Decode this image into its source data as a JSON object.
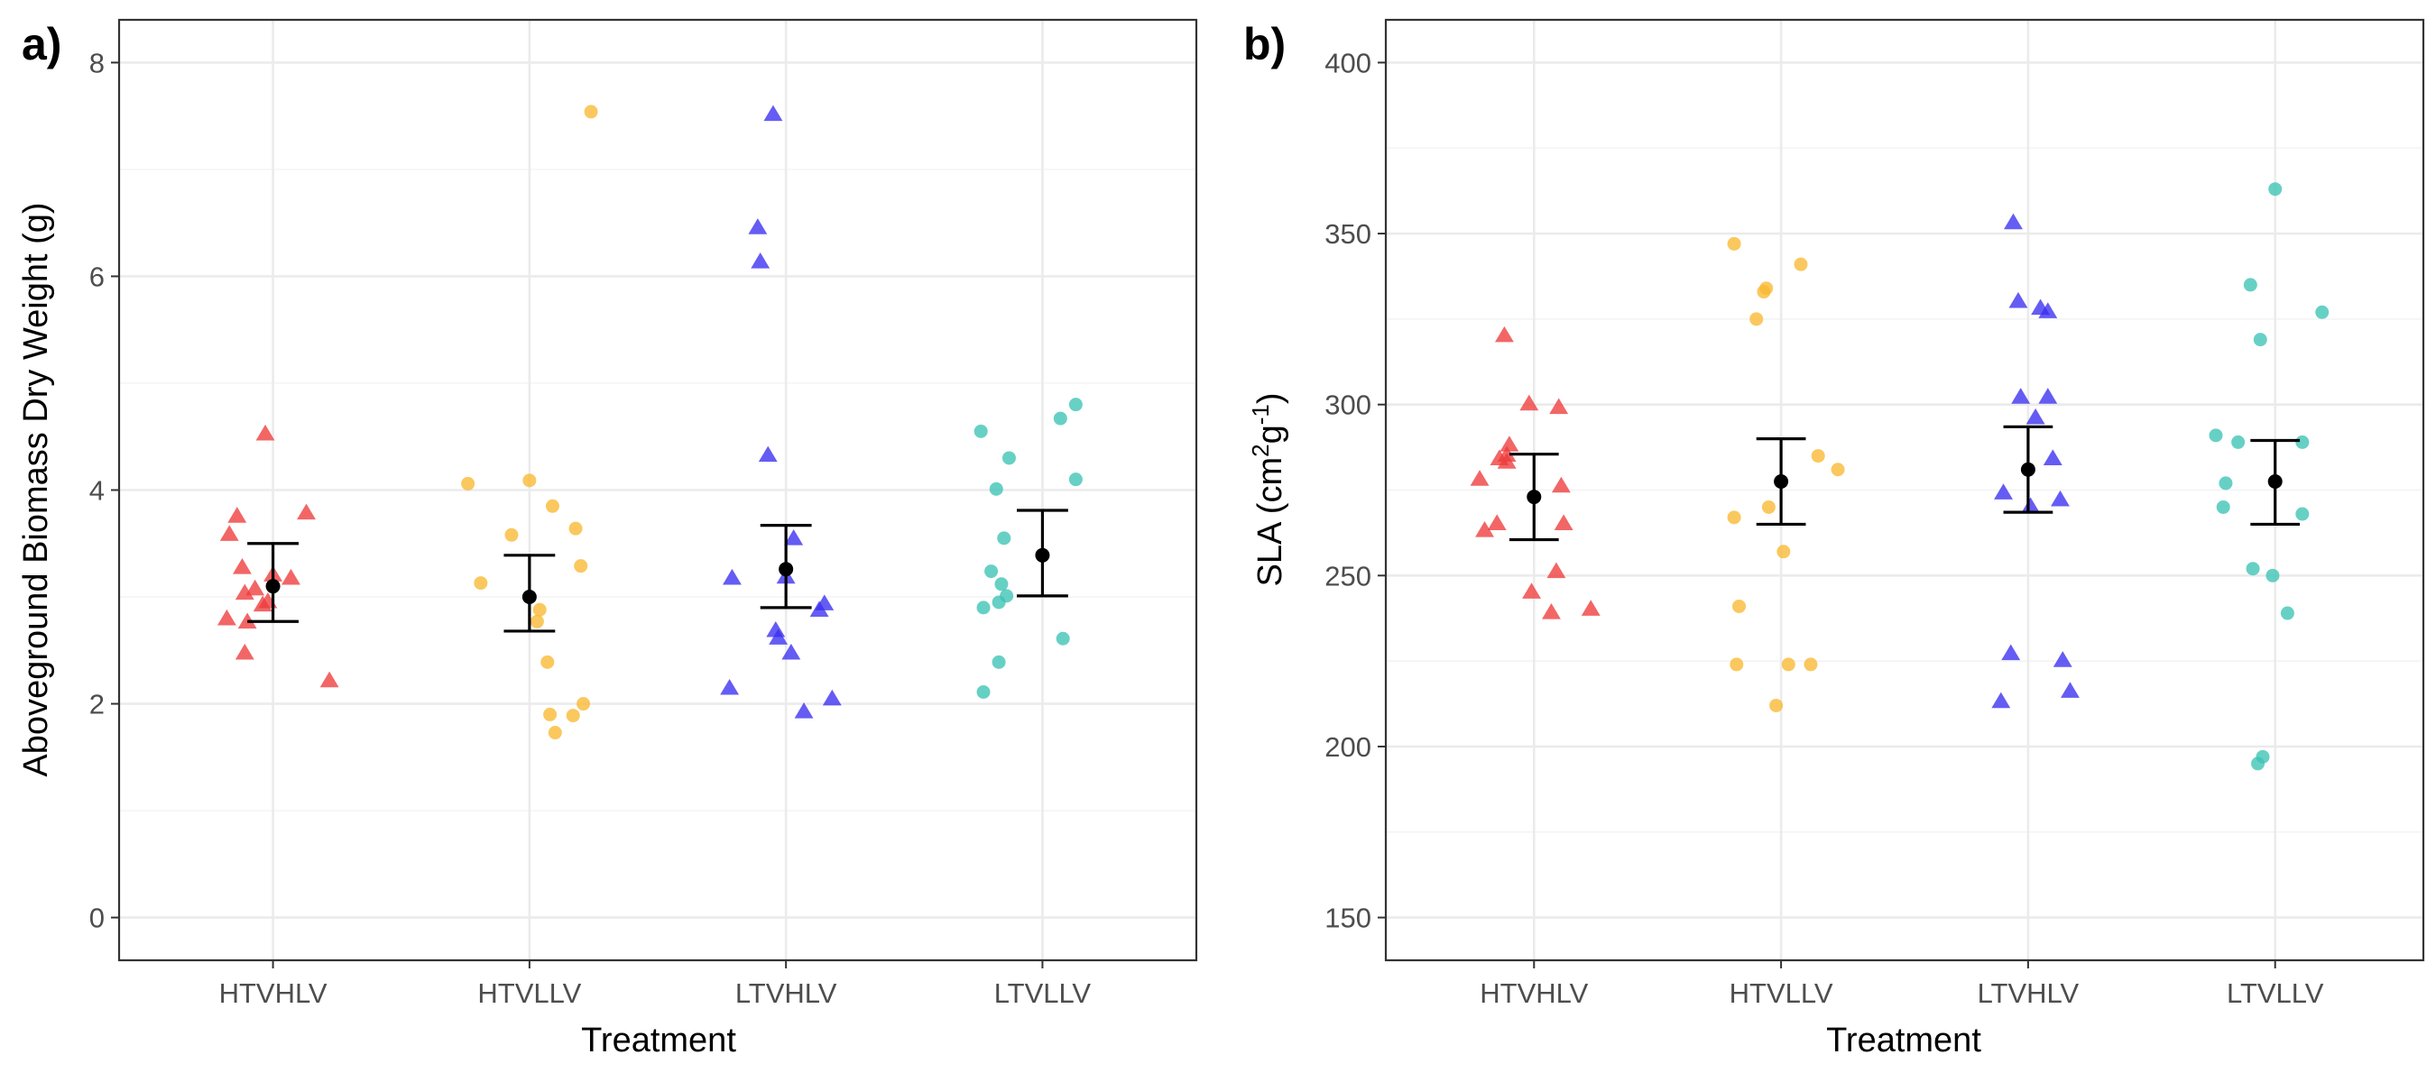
{
  "figure": {
    "treatments": [
      "HTVHLV",
      "HTVLLV",
      "LTVHLV",
      "LTVLLV"
    ],
    "colors": {
      "HTVHLV": "#ee3b3b",
      "HTVLLV": "#f9b931",
      "LTVHLV": "#3a2ef0",
      "LTVLLV": "#3cc3b5",
      "mean": "#000000",
      "grid_major": "#ebebeb",
      "grid_minor": "#f3f3f3",
      "panel_border": "#333333"
    },
    "shapes": {
      "HTVHLV": "triangle",
      "HTVLLV": "circle",
      "LTVHLV": "triangle",
      "LTVLLV": "circle"
    }
  },
  "chart_data": [
    {
      "type": "scatter",
      "panel_label": "a)",
      "xlabel": "Treatment",
      "ylabel": "Aboveground Biomass Dry Weight (g)",
      "categories": [
        "HTVHLV",
        "HTVLLV",
        "LTVHLV",
        "LTVLLV"
      ],
      "ylim": [
        -0.4,
        8.4
      ],
      "yticks": [
        "0",
        "2",
        "4",
        "6",
        "8"
      ],
      "grid": true,
      "series": [
        {
          "category": "HTVHLV",
          "points": [
            [
              -0.17,
              3.58
            ],
            [
              -0.14,
              3.75
            ],
            [
              -0.12,
              3.27
            ],
            [
              -0.18,
              2.79
            ],
            [
              -0.11,
              3.03
            ],
            [
              -0.07,
              3.07
            ],
            [
              -0.04,
              2.92
            ],
            [
              -0.1,
              2.76
            ],
            [
              -0.11,
              2.47
            ],
            [
              0.07,
              3.17
            ],
            [
              0.13,
              3.78
            ],
            [
              0.22,
              2.21
            ],
            [
              -0.03,
              4.52
            ],
            [
              -0.02,
              2.95
            ],
            [
              0.0,
              3.2
            ]
          ]
        },
        {
          "category": "HTVLLV",
          "points": [
            [
              -0.24,
              4.06
            ],
            [
              -0.19,
              3.13
            ],
            [
              -0.07,
              3.58
            ],
            [
              0.0,
              4.09
            ],
            [
              0.09,
              3.85
            ],
            [
              0.18,
              3.64
            ],
            [
              0.2,
              3.29
            ],
            [
              0.24,
              7.54
            ],
            [
              0.04,
              2.88
            ],
            [
              0.03,
              2.77
            ],
            [
              0.07,
              2.39
            ],
            [
              0.08,
              1.9
            ],
            [
              0.1,
              1.73
            ],
            [
              0.17,
              1.89
            ],
            [
              0.21,
              2.0
            ]
          ]
        },
        {
          "category": "LTVHLV",
          "points": [
            [
              -0.21,
              3.17
            ],
            [
              -0.22,
              2.14
            ],
            [
              -0.11,
              6.45
            ],
            [
              -0.1,
              6.13
            ],
            [
              -0.05,
              7.51
            ],
            [
              -0.07,
              4.32
            ],
            [
              -0.04,
              2.68
            ],
            [
              -0.03,
              2.61
            ],
            [
              0.02,
              2.47
            ],
            [
              0.03,
              3.54
            ],
            [
              0.07,
              1.92
            ],
            [
              0.13,
              2.87
            ],
            [
              0.15,
              2.93
            ],
            [
              0.18,
              2.04
            ],
            [
              0.0,
              3.18
            ]
          ]
        },
        {
          "category": "LTVLLV",
          "points": [
            [
              -0.24,
              4.55
            ],
            [
              -0.23,
              2.9
            ],
            [
              -0.2,
              3.24
            ],
            [
              -0.18,
              4.01
            ],
            [
              -0.15,
              3.55
            ],
            [
              -0.14,
              3.01
            ],
            [
              -0.17,
              2.95
            ],
            [
              -0.13,
              4.3
            ],
            [
              -0.16,
              3.12
            ],
            [
              -0.23,
              2.11
            ],
            [
              -0.17,
              2.39
            ],
            [
              0.07,
              4.67
            ],
            [
              0.13,
              4.8
            ],
            [
              0.13,
              4.1
            ],
            [
              0.08,
              2.61
            ]
          ]
        }
      ],
      "summary": [
        {
          "category": "HTVHLV",
          "mean": 3.1,
          "lower": 2.77,
          "upper": 3.5
        },
        {
          "category": "HTVLLV",
          "mean": 3.0,
          "lower": 2.68,
          "upper": 3.39
        },
        {
          "category": "LTVHLV",
          "mean": 3.26,
          "lower": 2.9,
          "upper": 3.67
        },
        {
          "category": "LTVLLV",
          "mean": 3.39,
          "lower": 3.01,
          "upper": 3.81
        }
      ]
    },
    {
      "type": "scatter",
      "panel_label": "b)",
      "xlabel": "Treatment",
      "ylabel": "SLA (cm²g⁻¹)",
      "categories": [
        "HTVHLV",
        "HTVLLV",
        "LTVHLV",
        "LTVLLV"
      ],
      "ylim": [
        137.5,
        412.5
      ],
      "yticks": [
        "150",
        "200",
        "250",
        "300",
        "350",
        "400"
      ],
      "grid": true,
      "series": [
        {
          "category": "HTVHLV",
          "points": [
            [
              -0.22,
              278
            ],
            [
              -0.2,
              263
            ],
            [
              -0.15,
              265
            ],
            [
              -0.14,
              284
            ],
            [
              -0.11,
              283
            ],
            [
              -0.11,
              285
            ],
            [
              -0.1,
              288
            ],
            [
              -0.12,
              320
            ],
            [
              -0.02,
              300
            ],
            [
              0.1,
              299
            ],
            [
              0.11,
              276
            ],
            [
              0.12,
              265
            ],
            [
              -0.01,
              245
            ],
            [
              0.09,
              251
            ],
            [
              0.07,
              239
            ],
            [
              0.23,
              240
            ]
          ]
        },
        {
          "category": "HTVLLV",
          "points": [
            [
              -0.19,
              347
            ],
            [
              -0.07,
              333
            ],
            [
              -0.06,
              334
            ],
            [
              -0.1,
              325
            ],
            [
              0.08,
              341
            ],
            [
              0.15,
              285
            ],
            [
              0.23,
              281
            ],
            [
              -0.19,
              267
            ],
            [
              -0.05,
              270
            ],
            [
              0.01,
              257
            ],
            [
              -0.17,
              241
            ],
            [
              -0.18,
              224
            ],
            [
              -0.02,
              212
            ],
            [
              0.03,
              224
            ],
            [
              0.12,
              224
            ]
          ]
        },
        {
          "category": "LTVHLV",
          "points": [
            [
              -0.06,
              353
            ],
            [
              -0.04,
              330
            ],
            [
              0.05,
              328
            ],
            [
              0.08,
              327
            ],
            [
              0.08,
              302
            ],
            [
              -0.03,
              302
            ],
            [
              0.03,
              296
            ],
            [
              0.1,
              284
            ],
            [
              0.13,
              272
            ],
            [
              0.01,
              270
            ],
            [
              -0.1,
              274
            ],
            [
              -0.07,
              227
            ],
            [
              0.14,
              225
            ],
            [
              -0.11,
              213
            ],
            [
              0.17,
              216
            ]
          ]
        },
        {
          "category": "LTVLLV",
          "points": [
            [
              -0.1,
              335
            ],
            [
              -0.24,
              291
            ],
            [
              -0.2,
              277
            ],
            [
              -0.21,
              270
            ],
            [
              -0.15,
              289
            ],
            [
              -0.06,
              319
            ],
            [
              0.0,
              363
            ],
            [
              0.11,
              289
            ],
            [
              0.19,
              327
            ],
            [
              0.11,
              268
            ],
            [
              -0.09,
              252
            ],
            [
              -0.01,
              250
            ],
            [
              0.05,
              239
            ],
            [
              -0.05,
              197
            ],
            [
              -0.07,
              195
            ]
          ]
        }
      ],
      "summary": [
        {
          "category": "HTVHLV",
          "mean": 273,
          "lower": 260.5,
          "upper": 285.5
        },
        {
          "category": "HTVLLV",
          "mean": 277.5,
          "lower": 265,
          "upper": 290
        },
        {
          "category": "LTVHLV",
          "mean": 281,
          "lower": 268.5,
          "upper": 293.5
        },
        {
          "category": "LTVLLV",
          "mean": 277.5,
          "lower": 265,
          "upper": 289.5
        }
      ]
    }
  ]
}
